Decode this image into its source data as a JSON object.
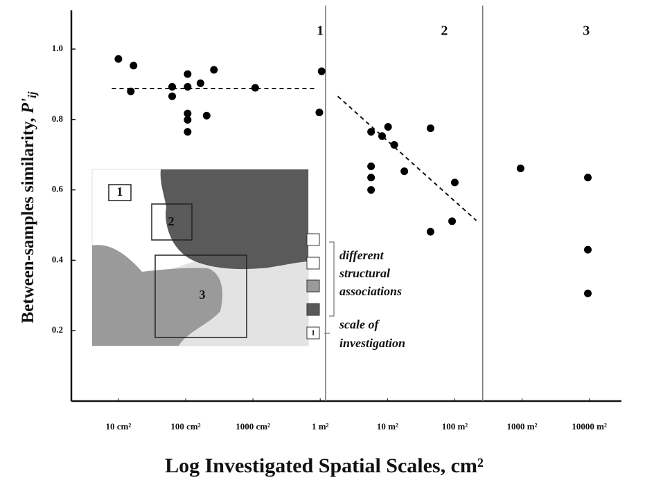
{
  "chart_data": {
    "type": "scatter",
    "xlabel": "Log Investigated Spatial Scales,  cm²",
    "ylabel": "Between-samples similarity,",
    "ylabel_symbol": "P'",
    "ylabel_subscript": "ij",
    "log_x": true,
    "color": "#000000",
    "xlim": [
      2,
      300000000
    ],
    "ylim": [
      0,
      1.11
    ],
    "xticks": [
      {
        "value": 10,
        "label": "10 cm²"
      },
      {
        "value": 100,
        "label": "100 cm²"
      },
      {
        "value": 1000,
        "label": "1000 cm²"
      },
      {
        "value": 10000,
        "label": "1 m²"
      },
      {
        "value": 100000,
        "label": "10 m²"
      },
      {
        "value": 1000000,
        "label": "100 m²"
      },
      {
        "value": 10000000,
        "label": "1000 m²"
      },
      {
        "value": 100000000,
        "label": "10000  m²"
      }
    ],
    "yticks": [
      0.2,
      0.4,
      0.6,
      0.8,
      {
        "value": 1,
        "label": "1.0"
      }
    ],
    "x": [
      10,
      16.8,
      15.3,
      63,
      63,
      107,
      107,
      166,
      263,
      107,
      107,
      107,
      205,
      1080,
      10500,
      9700,
      57000,
      83000,
      102000,
      126000,
      178000,
      57000,
      57000,
      57000,
      436000,
      436000,
      912000,
      1000000,
      9500000,
      95000000,
      95000000,
      95000000
    ],
    "values": [
      0.972,
      0.953,
      0.88,
      0.893,
      0.866,
      0.929,
      0.893,
      0.903,
      0.941,
      0.817,
      0.799,
      0.765,
      0.811,
      0.89,
      0.937,
      0.82,
      0.765,
      0.753,
      0.779,
      0.728,
      0.653,
      0.667,
      0.635,
      0.6,
      0.775,
      0.481,
      0.511,
      0.621,
      0.661,
      0.635,
      0.43,
      0.306
    ],
    "trend_lines": [
      {
        "x": [
          8,
          9100
        ],
        "values": [
          0.888,
          0.888
        ]
      },
      {
        "x": [
          18200,
          2090000
        ],
        "values": [
          0.866,
          0.513
        ]
      }
    ],
    "dividers": [
      12000,
      2600000
    ],
    "regions": [
      {
        "label": "1",
        "x": 10000
      },
      {
        "label": "2",
        "x": 700000
      },
      {
        "label": "3",
        "x": 90000000
      }
    ]
  },
  "inset": {
    "areas": [
      "1",
      "2",
      "3"
    ],
    "box_label": "1",
    "legend_lines": [
      "different",
      "structural",
      "associations",
      "scale of",
      "investigation"
    ]
  }
}
